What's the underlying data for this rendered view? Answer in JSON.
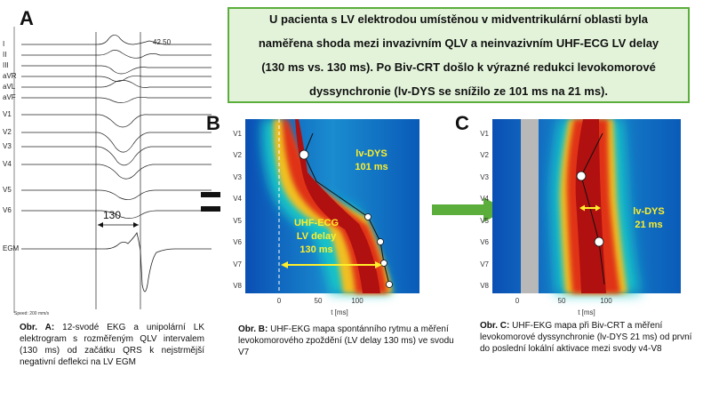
{
  "panels": {
    "a": {
      "letter": "A",
      "caption_prefix": "Obr. A:",
      "caption_text": "12-svodé EKG a unipolární LK elektrogram s rozměřeným QLV intervalem (130 ms) od začátku QRS k nejstrmější negativní deflekci na LV EGM",
      "leads": [
        "I",
        "II",
        "III",
        "aVR",
        "aVL",
        "aVF",
        "V1",
        "V2",
        "V3",
        "V4",
        "V5",
        "V6",
        "EGM"
      ],
      "interval_label": "130",
      "corner_value": "42.50",
      "footer": "Speed: 200 mm/s"
    },
    "b": {
      "letter": "B",
      "caption_prefix": "Obr. B:",
      "caption_text": "UHF-EKG mapa spontánního rytmu a měření levokomorového zpoždění (LV delay 130 ms) ve svodu V7",
      "lvdys_line1": "lv-DYS",
      "lvdys_line2": "101 ms",
      "uhf_line1": "UHF-ECG",
      "uhf_line2": "LV delay",
      "uhf_line3": "130 ms",
      "xticks": [
        "0",
        "50",
        "100"
      ],
      "xlabel": "t [ms]"
    },
    "c": {
      "letter": "C",
      "caption_prefix": "Obr. C:",
      "caption_text": "UHF-EKG mapa při Biv-CRT a měření levokomorové dyssynchronie (lv-DYS 21 ms) od první do poslední lokální aktivace mezi svody v4-V8",
      "lvdys_line1": "lv-DYS",
      "lvdys_line2": "21 ms",
      "xticks": [
        "0",
        "50",
        "100"
      ],
      "xlabel": "t [ms]"
    }
  },
  "map_leads": [
    "V1",
    "V2",
    "V3",
    "V4",
    "V5",
    "V6",
    "V7",
    "V8"
  ],
  "summary": {
    "line1": "U pacienta s LV elektrodou umístěnou v midventrikulární oblasti byla",
    "line2": "naměřena shoda mezi invazivním QLV a neinvazivním UHF-ECG LV delay",
    "line3": "(130 ms vs. 130 ms). Po Biv-CRT došlo k výrazné redukci levokomorové",
    "line4": "dyssynchronie (lv-DYS se snížilo ze 101 ms na 21 ms)."
  },
  "colors": {
    "accent_green": "#5bae3c",
    "box_fill": "#e3f3da",
    "label_yellow": "#ffef2a"
  }
}
